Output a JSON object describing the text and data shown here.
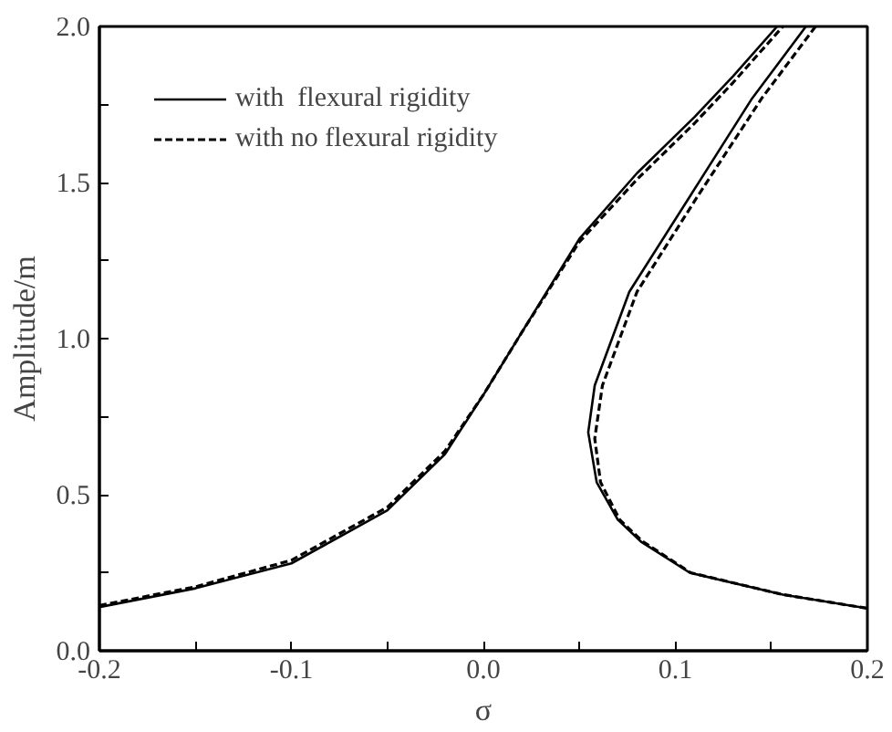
{
  "chart_data": {
    "type": "line",
    "xlabel": "σ",
    "ylabel": "Amplitude/m",
    "xlim": [
      -0.2,
      0.2
    ],
    "ylim": [
      0,
      2.0
    ],
    "xticks": [
      -0.2,
      {
        "value": -0.15,
        "label": null
      },
      -0.1,
      {
        "value": -0.05,
        "label": null
      },
      "0.0",
      {
        "value": 0.05,
        "label": null
      },
      0.1,
      {
        "value": 0.15,
        "label": null
      },
      0.2
    ],
    "yticks": [
      "0.0",
      {
        "value": 0.25,
        "label": null
      },
      0.5,
      {
        "value": 0.75,
        "label": null
      },
      "1.0",
      {
        "value": 1.25,
        "label": null
      },
      1.5,
      {
        "value": 1.75,
        "label": null
      },
      "2.0"
    ],
    "grid": false,
    "legend": "top left",
    "series": [
      {
        "name": "with  flexural rigidity",
        "color": "#000000",
        "line_style": "solid",
        "x": [
          -0.2,
          -0.15,
          -0.1,
          -0.05,
          -0.02,
          0,
          0.02,
          0.05,
          0.08,
          0.11,
          0.13,
          0.153
        ],
        "values": [
          0.14,
          0.2,
          0.28,
          0.45,
          0.63,
          0.82,
          1.02,
          1.32,
          1.53,
          1.71,
          1.84,
          2.0
        ]
      },
      {
        "name": "with no flexural rigidity",
        "color": "#000000",
        "line_style": "dashed",
        "x": [
          -0.2,
          -0.15,
          -0.1,
          -0.05,
          -0.02,
          0,
          0.02,
          0.05,
          0.08,
          0.11,
          0.13,
          0.156
        ],
        "values": [
          0.145,
          0.205,
          0.29,
          0.46,
          0.64,
          0.82,
          1.02,
          1.31,
          1.51,
          1.69,
          1.82,
          2.0
        ]
      },
      {
        "color": "#000000",
        "line_style": "solid",
        "x": [
          0.168,
          0.14,
          0.108,
          0.076,
          0.058,
          0.0546,
          0.059,
          0.07,
          0.082,
          0.1075,
          0.156,
          0.2
        ],
        "values": [
          2.0,
          1.77,
          1.46,
          1.15,
          0.85,
          0.7,
          0.54,
          0.42,
          0.35,
          0.25,
          0.18,
          0.136
        ]
      },
      {
        "color": "#000000",
        "line_style": "dashed",
        "x": [
          0.173,
          0.145,
          0.112,
          0.08,
          0.062,
          0.058,
          0.061,
          0.071,
          0.083,
          0.108,
          0.156,
          0.2
        ],
        "values": [
          2.0,
          1.77,
          1.46,
          1.15,
          0.85,
          0.68,
          0.54,
          0.42,
          0.35,
          0.25,
          0.18,
          0.136
        ]
      }
    ]
  }
}
